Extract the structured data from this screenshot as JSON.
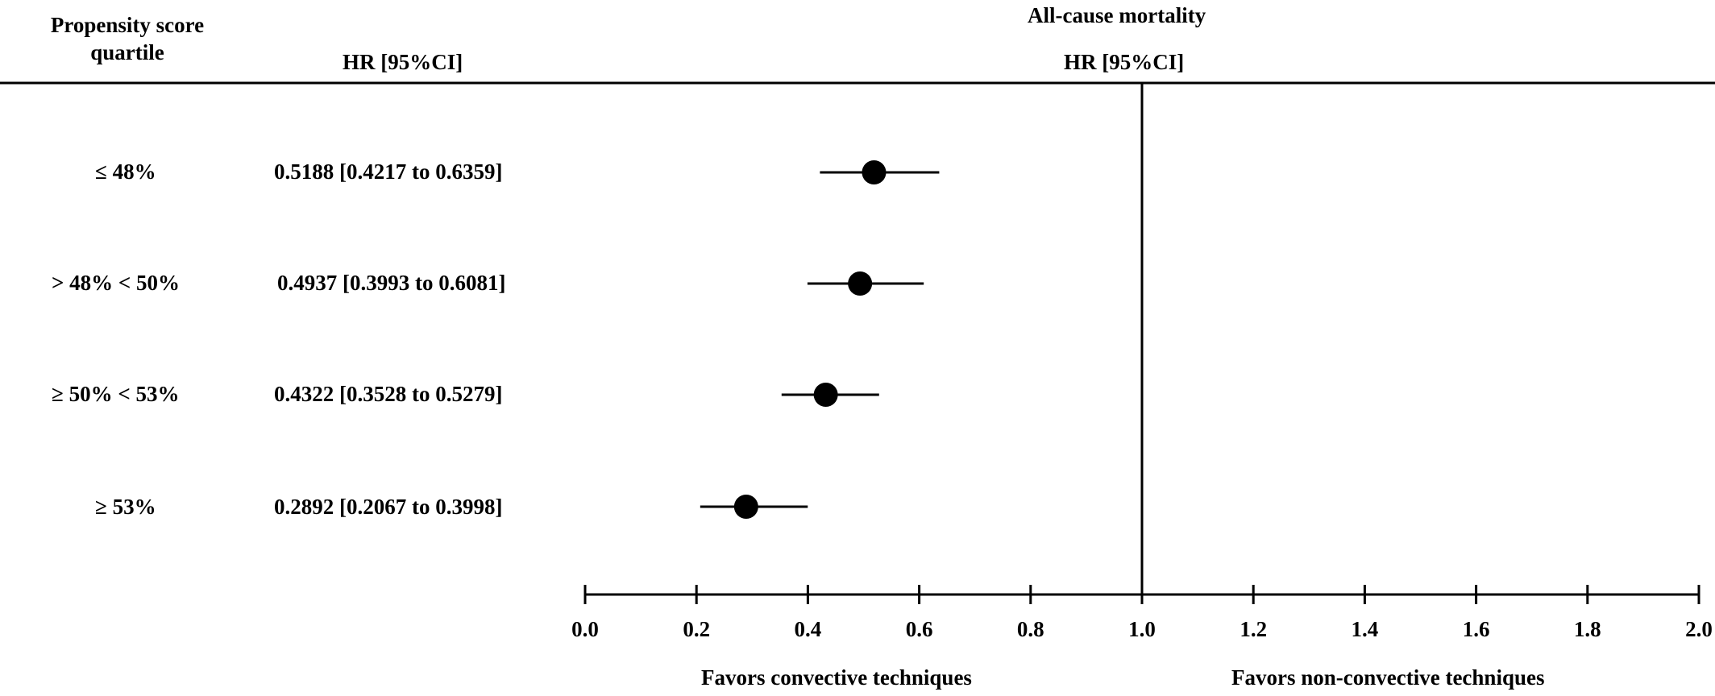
{
  "header": {
    "col1_line1": "Propensity score",
    "col1_line2": "quartile",
    "hr_left": "HR [95%CI]",
    "title": "All-cause mortality",
    "hr_right": "HR [95%CI]"
  },
  "rows": [
    {
      "label": "≤ 48%",
      "hr_text": "0.5188 [0.4217 to 0.6359]"
    },
    {
      "label": "> 48% < 50%",
      "hr_text": "0.4937 [0.3993 to 0.6081]"
    },
    {
      "label": "≥ 50% < 53%",
      "hr_text": "0.4322 [0.3528 to 0.5279]"
    },
    {
      "label": "≥ 53%",
      "hr_text": "0.2892 [0.2067 to 0.3998]"
    }
  ],
  "favors": {
    "left": "Favors convective techniques",
    "right": "Favors non-convective techniques"
  },
  "chart_data": {
    "type": "forest",
    "title": "All-cause mortality",
    "xlabel": "",
    "xlim": [
      0.0,
      2.0
    ],
    "reference_line": 1.0,
    "ticks": [
      "0.0",
      "0.2",
      "0.4",
      "0.6",
      "0.8",
      "1.0",
      "1.2",
      "1.4",
      "1.6",
      "1.8",
      "2.0"
    ],
    "tick_values": [
      0.0,
      0.2,
      0.4,
      0.6,
      0.8,
      1.0,
      1.2,
      1.4,
      1.6,
      1.8,
      2.0
    ],
    "categories": [
      "≤ 48%",
      "> 48% < 50%",
      "≥ 50% < 53%",
      "≥ 53%"
    ],
    "points": [
      {
        "hr": 0.5188,
        "lo": 0.4217,
        "hi": 0.6359
      },
      {
        "hr": 0.4937,
        "lo": 0.3993,
        "hi": 0.6081
      },
      {
        "hr": 0.4322,
        "lo": 0.3528,
        "hi": 0.5279
      },
      {
        "hr": 0.2892,
        "lo": 0.2067,
        "hi": 0.3998
      }
    ]
  }
}
